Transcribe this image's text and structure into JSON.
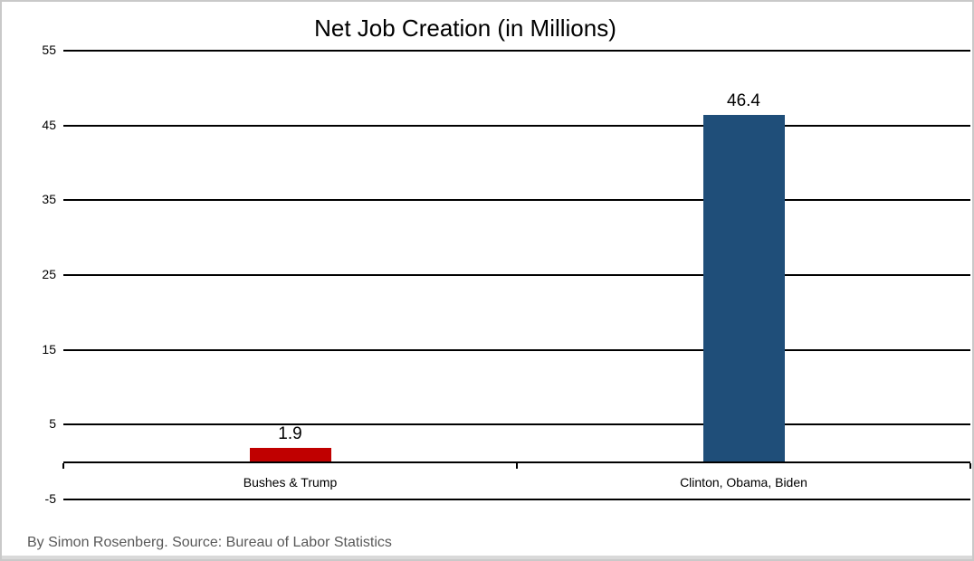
{
  "chart_data": {
    "type": "bar",
    "title": "Net Job Creation (in Millions)",
    "categories": [
      "Bushes & Trump",
      "Clinton, Obama, Biden"
    ],
    "values": [
      1.9,
      46.4
    ],
    "value_labels": [
      "1.9",
      "46.4"
    ],
    "bar_colors": [
      "#c00000",
      "#1f4e79"
    ],
    "ylim": [
      -5,
      55
    ],
    "yticks": [
      55,
      45,
      35,
      25,
      15,
      5,
      -5
    ],
    "axis_baseline_value": 0,
    "grid": "horizontal-on",
    "gridline_color": "#000000",
    "legend_position": "none",
    "xlabel": "",
    "ylabel": ""
  },
  "footer": {
    "source_note": "By Simon Rosenberg. Source: Bureau of Labor Statistics"
  },
  "frame": {
    "background_color": "#ffffff",
    "border_color": "#c9c9c9"
  }
}
